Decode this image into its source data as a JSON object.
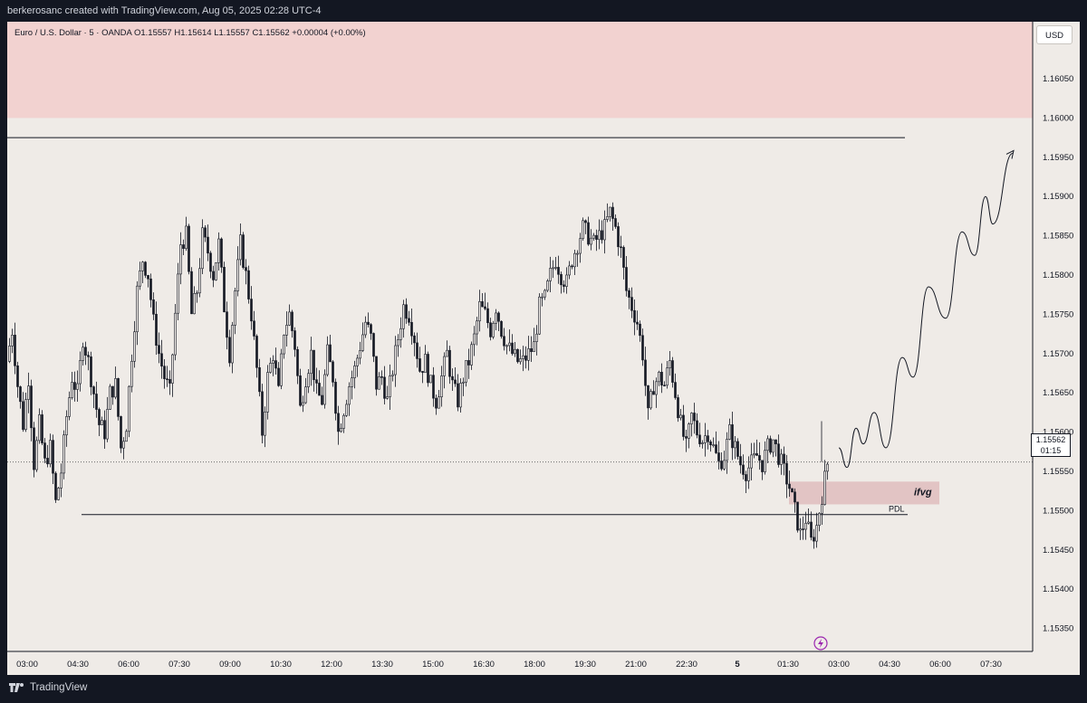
{
  "header": {
    "attribution": "berkerosanc created with TradingView.com, Aug 05, 2025 02:28 UTC-4"
  },
  "legend": {
    "text": "Euro / U.S. Dollar · 5 · OANDA  O1.15557  H1.15614  L1.15557  C1.15562  +0.00004 (+0.00%)"
  },
  "currency": "USD",
  "price_tag": {
    "price": "1.15562",
    "countdown": "01:15"
  },
  "brand": {
    "name": "TradingView"
  },
  "colors": {
    "background": "#efebe7",
    "candle": "#131722",
    "supply_zone": "#f2d2d0",
    "ifvg_zone": "#e2c4c4",
    "frame": "#131722"
  },
  "chart_data": {
    "type": "candlestick",
    "symbol": "Euro / U.S. Dollar",
    "interval": "5",
    "exchange": "OANDA",
    "y_ticks": [
      1.1605,
      1.16,
      1.1595,
      1.159,
      1.1585,
      1.158,
      1.1575,
      1.157,
      1.1565,
      1.156,
      1.1555,
      1.155,
      1.1545,
      1.154,
      1.1535
    ],
    "ylim": [
      1.1531,
      1.1613
    ],
    "x_ticks": [
      "03:00",
      "04:30",
      "06:00",
      "07:30",
      "09:00",
      "10:30",
      "12:00",
      "13:30",
      "15:00",
      "16:30",
      "18:00",
      "19:30",
      "21:00",
      "22:30",
      "5",
      "01:30",
      "03:00",
      "04:30",
      "06:00",
      "07:30"
    ],
    "last_price": 1.15562,
    "price_path": [
      [
        0,
        1.1569
      ],
      [
        6,
        1.1573
      ],
      [
        12,
        1.1566
      ],
      [
        18,
        1.1561
      ],
      [
        24,
        1.1567
      ],
      [
        30,
        1.1556
      ],
      [
        36,
        1.1561
      ],
      [
        42,
        1.1556
      ],
      [
        48,
        1.1558
      ],
      [
        54,
        1.1551
      ],
      [
        60,
        1.1555
      ],
      [
        66,
        1.1562
      ],
      [
        72,
        1.1567
      ],
      [
        78,
        1.1565
      ],
      [
        84,
        1.1572
      ],
      [
        90,
        1.1569
      ],
      [
        96,
        1.1565
      ],
      [
        102,
        1.1561
      ],
      [
        108,
        1.156
      ],
      [
        114,
        1.1565
      ],
      [
        120,
        1.1566
      ],
      [
        126,
        1.1558
      ],
      [
        132,
        1.1561
      ],
      [
        138,
        1.157
      ],
      [
        144,
        1.1578
      ],
      [
        150,
        1.1582
      ],
      [
        156,
        1.158
      ],
      [
        162,
        1.1574
      ],
      [
        168,
        1.157
      ],
      [
        174,
        1.1567
      ],
      [
        180,
        1.1565
      ],
      [
        186,
        1.1575
      ],
      [
        192,
        1.1584
      ],
      [
        198,
        1.1585
      ],
      [
        204,
        1.1575
      ],
      [
        210,
        1.1578
      ],
      [
        216,
        1.1585
      ],
      [
        222,
        1.1583
      ],
      [
        228,
        1.158
      ],
      [
        234,
        1.1584
      ],
      [
        240,
        1.1576
      ],
      [
        246,
        1.157
      ],
      [
        252,
        1.1578
      ],
      [
        258,
        1.1584
      ],
      [
        264,
        1.158
      ],
      [
        270,
        1.1575
      ],
      [
        276,
        1.1568
      ],
      [
        282,
        1.156
      ],
      [
        288,
        1.1567
      ],
      [
        294,
        1.157
      ],
      [
        300,
        1.1565
      ],
      [
        306,
        1.1573
      ],
      [
        312,
        1.1575
      ],
      [
        318,
        1.1571
      ],
      [
        324,
        1.1563
      ],
      [
        330,
        1.1567
      ],
      [
        336,
        1.157
      ],
      [
        342,
        1.1565
      ],
      [
        348,
        1.1564
      ],
      [
        354,
        1.157
      ],
      [
        360,
        1.1567
      ],
      [
        366,
        1.156
      ],
      [
        372,
        1.1563
      ],
      [
        378,
        1.1566
      ],
      [
        384,
        1.1568
      ],
      [
        390,
        1.1571
      ],
      [
        396,
        1.1574
      ],
      [
        402,
        1.1572
      ],
      [
        408,
        1.1566
      ],
      [
        414,
        1.1567
      ],
      [
        420,
        1.1564
      ],
      [
        426,
        1.1568
      ],
      [
        432,
        1.1572
      ],
      [
        438,
        1.1576
      ],
      [
        444,
        1.1575
      ],
      [
        450,
        1.1572
      ],
      [
        456,
        1.1568
      ],
      [
        462,
        1.1569
      ],
      [
        468,
        1.1566
      ],
      [
        474,
        1.1564
      ],
      [
        480,
        1.1567
      ],
      [
        486,
        1.157
      ],
      [
        492,
        1.1566
      ],
      [
        498,
        1.1564
      ],
      [
        504,
        1.1567
      ],
      [
        510,
        1.1569
      ],
      [
        516,
        1.1572
      ],
      [
        522,
        1.1576
      ],
      [
        528,
        1.1575
      ],
      [
        534,
        1.1573
      ],
      [
        540,
        1.1576
      ],
      [
        546,
        1.1573
      ],
      [
        552,
        1.1571
      ],
      [
        558,
        1.157
      ],
      [
        564,
        1.1569
      ],
      [
        570,
        1.1569
      ],
      [
        576,
        1.157
      ],
      [
        582,
        1.1571
      ],
      [
        588,
        1.1576
      ],
      [
        594,
        1.1577
      ],
      [
        600,
        1.158
      ],
      [
        606,
        1.1582
      ],
      [
        612,
        1.158
      ],
      [
        618,
        1.1579
      ],
      [
        624,
        1.1582
      ],
      [
        630,
        1.1584
      ],
      [
        636,
        1.1586
      ],
      [
        642,
        1.1585
      ],
      [
        648,
        1.1584
      ],
      [
        654,
        1.1585
      ],
      [
        660,
        1.1586
      ],
      [
        666,
        1.1588
      ],
      [
        672,
        1.1586
      ],
      [
        678,
        1.1583
      ],
      [
        684,
        1.1578
      ],
      [
        690,
        1.1576
      ],
      [
        696,
        1.1574
      ],
      [
        702,
        1.157
      ],
      [
        708,
        1.1562
      ],
      [
        714,
        1.1566
      ],
      [
        720,
        1.1567
      ],
      [
        726,
        1.1566
      ],
      [
        732,
        1.1569
      ],
      [
        738,
        1.1565
      ],
      [
        744,
        1.1561
      ],
      [
        750,
        1.1558
      ],
      [
        756,
        1.1562
      ],
      [
        762,
        1.156
      ],
      [
        768,
        1.1559
      ],
      [
        774,
        1.156
      ],
      [
        780,
        1.1558
      ],
      [
        786,
        1.1556
      ],
      [
        792,
        1.1557
      ],
      [
        798,
        1.156
      ],
      [
        804,
        1.1558
      ],
      [
        810,
        1.1556
      ],
      [
        816,
        1.1555
      ],
      [
        822,
        1.1556
      ],
      [
        828,
        1.1557
      ],
      [
        834,
        1.1556
      ],
      [
        840,
        1.1558
      ],
      [
        846,
        1.1559
      ],
      [
        852,
        1.1557
      ],
      [
        858,
        1.1555
      ],
      [
        864,
        1.1553
      ],
      [
        870,
        1.155
      ],
      [
        876,
        1.1547
      ],
      [
        882,
        1.1549
      ],
      [
        888,
        1.1546
      ],
      [
        894,
        1.1548
      ],
      [
        900,
        1.1552
      ],
      [
        906,
        1.1556
      ]
    ],
    "forecast_path": [
      [
        918,
        1.1558
      ],
      [
        927,
        1.15555
      ],
      [
        937,
        1.15605
      ],
      [
        945,
        1.15585
      ],
      [
        957,
        1.15625
      ],
      [
        970,
        1.1558
      ],
      [
        988,
        1.15695
      ],
      [
        1000,
        1.1567
      ],
      [
        1017,
        1.15785
      ],
      [
        1036,
        1.15745
      ],
      [
        1054,
        1.15855
      ],
      [
        1068,
        1.15825
      ],
      [
        1080,
        1.159
      ],
      [
        1088,
        1.15865
      ],
      [
        1110,
        1.15955
      ]
    ],
    "annotations": {
      "supply_zone": {
        "from": 1.16,
        "to": 1.16125
      },
      "resistance_line": 1.15975,
      "current_price_line": 1.15562,
      "pdl": {
        "label": "PDL",
        "price": 1.15495
      },
      "ifvg": {
        "label": "ifvg",
        "from": 1.15508,
        "to": 1.15537
      }
    }
  }
}
